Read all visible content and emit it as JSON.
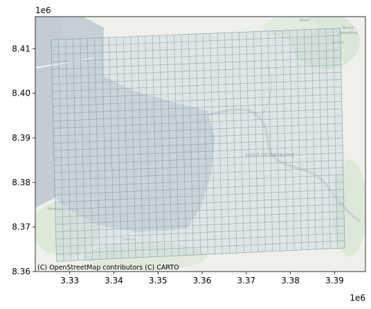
{
  "chart_data": {
    "type": "map",
    "x_exponent_label": "1e6",
    "y_exponent_label": "1e6",
    "xlim": [
      3.3222,
      3.397
    ],
    "ylim": [
      8.36,
      8.4172
    ],
    "x_ticks": [
      {
        "value": 3.33,
        "label": "3.33"
      },
      {
        "value": 3.34,
        "label": "3.34"
      },
      {
        "value": 3.35,
        "label": "3.35"
      },
      {
        "value": 3.36,
        "label": "3.36"
      },
      {
        "value": 3.37,
        "label": "3.37"
      },
      {
        "value": 3.38,
        "label": "3.38"
      },
      {
        "value": 3.39,
        "label": "3.39"
      }
    ],
    "y_ticks": [
      {
        "value": 8.36,
        "label": "8.36"
      },
      {
        "value": 8.37,
        "label": "8.37"
      },
      {
        "value": 8.38,
        "label": "8.38"
      },
      {
        "value": 8.39,
        "label": "8.39"
      },
      {
        "value": 8.4,
        "label": "8.40"
      },
      {
        "value": 8.41,
        "label": "8.41"
      }
    ],
    "grid_overlay": {
      "corners": {
        "top_left": [
          3.3258,
          8.412
        ],
        "top_right": [
          3.3913,
          8.4146
        ],
        "bottom_right": [
          3.3923,
          8.3653
        ],
        "bottom_left": [
          3.327,
          8.3623
        ]
      },
      "columns": 40,
      "rows": 30,
      "cell_fill": "#c9d6de",
      "cell_stroke": "#5d7483"
    },
    "basemap_labels": [
      {
        "text": "SAINT PETERSBURG",
        "x": 3.3753,
        "y": 8.3858
      },
      {
        "text": "Bugry",
        "x": 3.3833,
        "y": 8.4162
      },
      {
        "text": "Novoe",
        "x": 3.393,
        "y": 8.4145
      },
      {
        "text": "Devyatkino",
        "x": 3.393,
        "y": 8.4133
      },
      {
        "text": "Murino",
        "x": 3.3907,
        "y": 8.4112
      },
      {
        "text": "Peterhof",
        "x": 3.3266,
        "y": 8.3738
      },
      {
        "text": "Strelna",
        "x": 3.3433,
        "y": 8.367
      }
    ],
    "attribution": "(C) OpenStreetMap contributors (C) CARTO",
    "colors": {
      "land": "#eef0ec",
      "water": "#c6cfd4",
      "park": "#dbe7d8",
      "river": "#c9d3d8"
    }
  }
}
